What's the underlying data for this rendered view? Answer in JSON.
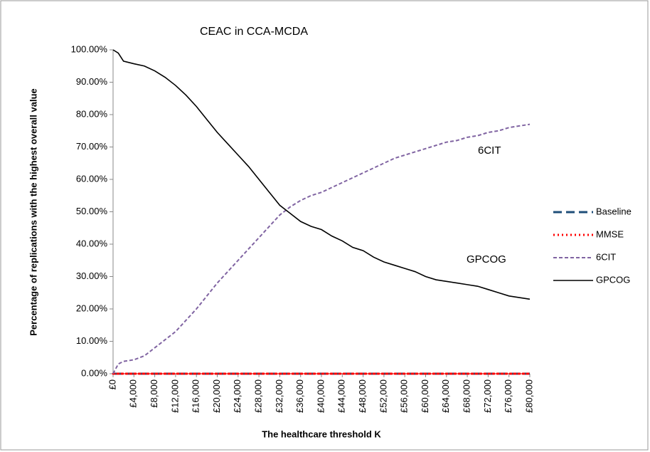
{
  "chart_data": {
    "type": "line",
    "title": "CEAC in CCA-MCDA",
    "x_label": "The healthcare threshold K",
    "y_label": "Percentage of replications with the highest overall value",
    "x": [
      0,
      1000,
      2000,
      4000,
      6000,
      8000,
      10000,
      12000,
      14000,
      16000,
      18000,
      20000,
      22000,
      24000,
      26000,
      28000,
      30000,
      32000,
      34000,
      36000,
      38000,
      40000,
      42000,
      44000,
      46000,
      48000,
      50000,
      52000,
      54000,
      56000,
      58000,
      60000,
      62000,
      64000,
      66000,
      68000,
      70000,
      72000,
      74000,
      76000,
      78000,
      80000
    ],
    "xlim": [
      0,
      80000
    ],
    "xticks": [
      {
        "value": 0,
        "label": "£0"
      },
      {
        "value": 4000,
        "label": "£4,000"
      },
      {
        "value": 8000,
        "label": "£8,000"
      },
      {
        "value": 12000,
        "label": "£12,000"
      },
      {
        "value": 16000,
        "label": "£16,000"
      },
      {
        "value": 20000,
        "label": "£20,000"
      },
      {
        "value": 24000,
        "label": "£24,000"
      },
      {
        "value": 28000,
        "label": "£28,000"
      },
      {
        "value": 32000,
        "label": "£32,000"
      },
      {
        "value": 36000,
        "label": "£36,000"
      },
      {
        "value": 40000,
        "label": "£40,000"
      },
      {
        "value": 44000,
        "label": "£44,000"
      },
      {
        "value": 48000,
        "label": "£48,000"
      },
      {
        "value": 52000,
        "label": "£52,000"
      },
      {
        "value": 56000,
        "label": "£56,000"
      },
      {
        "value": 60000,
        "label": "£60,000"
      },
      {
        "value": 64000,
        "label": "£64,000"
      },
      {
        "value": 68000,
        "label": "£68,000"
      },
      {
        "value": 72000,
        "label": "£72,000"
      },
      {
        "value": 76000,
        "label": "£76,000"
      },
      {
        "value": 80000,
        "label": "£80,000"
      }
    ],
    "ylim": [
      0,
      100
    ],
    "yticks": [
      {
        "value": 0,
        "label": "0.00%"
      },
      {
        "value": 10,
        "label": "10.00%"
      },
      {
        "value": 20,
        "label": "20.00%"
      },
      {
        "value": 30,
        "label": "30.00%"
      },
      {
        "value": 40,
        "label": "40.00%"
      },
      {
        "value": 50,
        "label": "50.00%"
      },
      {
        "value": 60,
        "label": "60.00%"
      },
      {
        "value": 70,
        "label": "70.00%"
      },
      {
        "value": 80,
        "label": "80.00%"
      },
      {
        "value": 90,
        "label": "90.00%"
      },
      {
        "value": 100,
        "label": "100.00%"
      }
    ],
    "grid": false,
    "legend": "right",
    "series": [
      {
        "name": "Baseline",
        "color": "#1f4e79",
        "line_style": "dashed",
        "values": [
          0,
          0,
          0,
          0,
          0,
          0,
          0,
          0,
          0,
          0,
          0,
          0,
          0,
          0,
          0,
          0,
          0,
          0,
          0,
          0,
          0,
          0,
          0,
          0,
          0,
          0,
          0,
          0,
          0,
          0,
          0,
          0,
          0,
          0,
          0,
          0,
          0,
          0,
          0,
          0,
          0,
          0
        ]
      },
      {
        "name": "MMSE",
        "color": "#ff0000",
        "line_style": "dotted",
        "values": [
          0,
          0,
          0,
          0,
          0,
          0,
          0,
          0,
          0,
          0,
          0,
          0,
          0,
          0,
          0,
          0,
          0,
          0,
          0,
          0,
          0,
          0,
          0,
          0,
          0,
          0,
          0,
          0,
          0,
          0,
          0,
          0,
          0,
          0,
          0,
          0,
          0,
          0,
          0,
          0,
          0,
          0
        ]
      },
      {
        "name": "6CIT",
        "color": "#8064a2",
        "line_style": "short-dashed",
        "values": [
          0,
          3,
          3.8,
          4.3,
          5.5,
          8,
          10.5,
          13,
          16.5,
          20,
          24,
          28,
          31.5,
          35,
          38.5,
          42,
          45.5,
          49,
          51.5,
          53.5,
          55,
          56,
          57.5,
          59,
          60.5,
          62,
          63.5,
          65,
          66.5,
          67.5,
          68.5,
          69.5,
          70.5,
          71.5,
          72,
          73,
          73.5,
          74.5,
          75,
          76,
          76.5,
          77
        ]
      },
      {
        "name": "GPCOG",
        "color": "#000000",
        "line_style": "solid",
        "values": [
          100,
          99,
          96.5,
          95.7,
          95,
          93.5,
          91.5,
          89,
          86,
          82.5,
          78.5,
          74.5,
          71,
          67.5,
          64,
          60,
          56,
          52,
          49.5,
          47,
          45.5,
          44.5,
          42.5,
          41,
          39,
          38,
          36,
          34.5,
          33.5,
          32.5,
          31.5,
          30,
          29,
          28.5,
          28,
          27.5,
          27,
          26,
          25,
          24,
          23.5,
          23
        ]
      }
    ],
    "annotations": [
      "6CIT",
      "GPCOG"
    ]
  }
}
